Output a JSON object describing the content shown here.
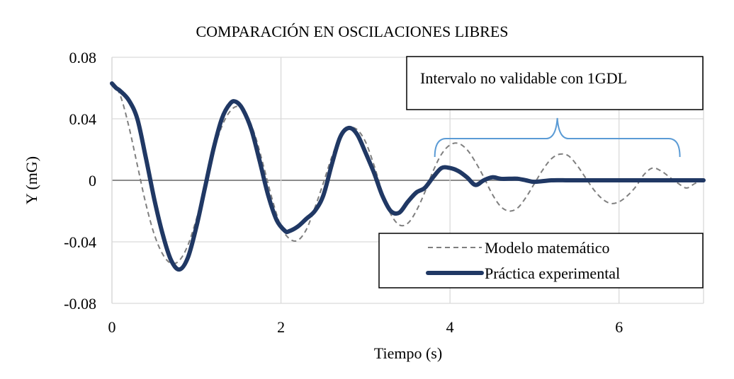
{
  "chart_data": {
    "type": "line",
    "title": "COMPARACIÓN EN OSCILACIONES LIBRES",
    "xlabel": "Tiempo (s)",
    "ylabel": "Y (mG)",
    "xlim": [
      0,
      7
    ],
    "ylim": [
      -0.08,
      0.08
    ],
    "xticks": [
      0,
      2,
      4,
      6
    ],
    "xtick_labels": [
      "0",
      "2",
      "4",
      "6"
    ],
    "yticks": [
      0.08,
      0.04,
      0,
      -0.04,
      -0.08
    ],
    "ytick_labels": [
      "0.08",
      "0.04",
      "0",
      "-0.04",
      "-0.08"
    ],
    "grid": true,
    "legend_position": "bottom-right",
    "annotation": {
      "text": "Intervalo no validable con 1GDL",
      "x_start": 3.82,
      "x_end": 6.72
    },
    "series": [
      {
        "name": "Modelo matemático",
        "style": "dashed",
        "color": "#7f7f7f",
        "x": [
          0.0,
          0.1,
          0.2,
          0.3,
          0.4,
          0.5,
          0.6,
          0.7,
          0.8,
          0.9,
          1.0,
          1.1,
          1.2,
          1.3,
          1.4,
          1.5,
          1.6,
          1.7,
          1.8,
          1.9,
          2.0,
          2.1,
          2.2,
          2.3,
          2.4,
          2.5,
          2.6,
          2.7,
          2.8,
          2.9,
          3.0,
          3.1,
          3.2,
          3.3,
          3.4,
          3.5,
          3.6,
          3.7,
          3.8,
          3.9,
          4.0,
          4.1,
          4.2,
          4.3,
          4.4,
          4.5,
          4.6,
          4.7,
          4.8,
          4.9,
          5.0,
          5.1,
          5.2,
          5.3,
          5.4,
          5.5,
          5.6,
          5.7,
          5.8,
          5.9,
          6.0,
          6.1,
          6.2,
          6.3,
          6.4,
          6.5,
          6.6,
          6.7,
          6.8,
          6.9,
          7.0
        ],
        "y": [
          0.064,
          0.055,
          0.035,
          0.01,
          -0.015,
          -0.035,
          -0.048,
          -0.054,
          -0.052,
          -0.042,
          -0.025,
          -0.004,
          0.018,
          0.035,
          0.045,
          0.048,
          0.042,
          0.028,
          0.008,
          -0.013,
          -0.03,
          -0.038,
          -0.039,
          -0.032,
          -0.018,
          -0.002,
          0.015,
          0.028,
          0.034,
          0.033,
          0.025,
          0.01,
          -0.008,
          -0.022,
          -0.029,
          -0.028,
          -0.02,
          -0.008,
          0.006,
          0.017,
          0.023,
          0.024,
          0.02,
          0.012,
          0.002,
          -0.009,
          -0.017,
          -0.02,
          -0.018,
          -0.011,
          -0.002,
          0.007,
          0.014,
          0.017,
          0.016,
          0.01,
          0.002,
          -0.006,
          -0.012,
          -0.015,
          -0.014,
          -0.01,
          -0.004,
          0.004,
          0.008,
          0.006,
          0.002,
          -0.002,
          -0.005,
          -0.002,
          0.0
        ]
      },
      {
        "name": "Práctica experimental",
        "style": "solid",
        "color": "#203864",
        "x": [
          0.0,
          0.05,
          0.1,
          0.2,
          0.3,
          0.4,
          0.5,
          0.6,
          0.7,
          0.8,
          0.9,
          1.0,
          1.1,
          1.2,
          1.3,
          1.4,
          1.47,
          1.55,
          1.65,
          1.75,
          1.85,
          1.95,
          2.05,
          2.1,
          2.2,
          2.3,
          2.4,
          2.5,
          2.6,
          2.7,
          2.8,
          2.9,
          3.0,
          3.1,
          3.2,
          3.3,
          3.4,
          3.5,
          3.6,
          3.7,
          3.8,
          3.9,
          4.0,
          4.1,
          4.2,
          4.3,
          4.4,
          4.5,
          4.6,
          4.7,
          4.8,
          4.9,
          5.0,
          5.2,
          5.4,
          5.6,
          5.8,
          6.0,
          6.3,
          6.6,
          7.0
        ],
        "y": [
          0.063,
          0.06,
          0.058,
          0.052,
          0.04,
          0.015,
          -0.012,
          -0.035,
          -0.052,
          -0.058,
          -0.05,
          -0.03,
          -0.005,
          0.02,
          0.04,
          0.05,
          0.051,
          0.046,
          0.033,
          0.012,
          -0.01,
          -0.026,
          -0.033,
          -0.033,
          -0.03,
          -0.025,
          -0.02,
          -0.01,
          0.01,
          0.028,
          0.034,
          0.03,
          0.018,
          0.005,
          -0.01,
          -0.02,
          -0.021,
          -0.014,
          -0.008,
          -0.005,
          0.002,
          0.008,
          0.008,
          0.006,
          0.002,
          -0.003,
          0.0,
          0.002,
          0.001,
          0.001,
          0.001,
          0.0,
          -0.001,
          0.0,
          0.0,
          0.0,
          0.0,
          0.0,
          0.0,
          0.0,
          0.0
        ]
      }
    ]
  }
}
